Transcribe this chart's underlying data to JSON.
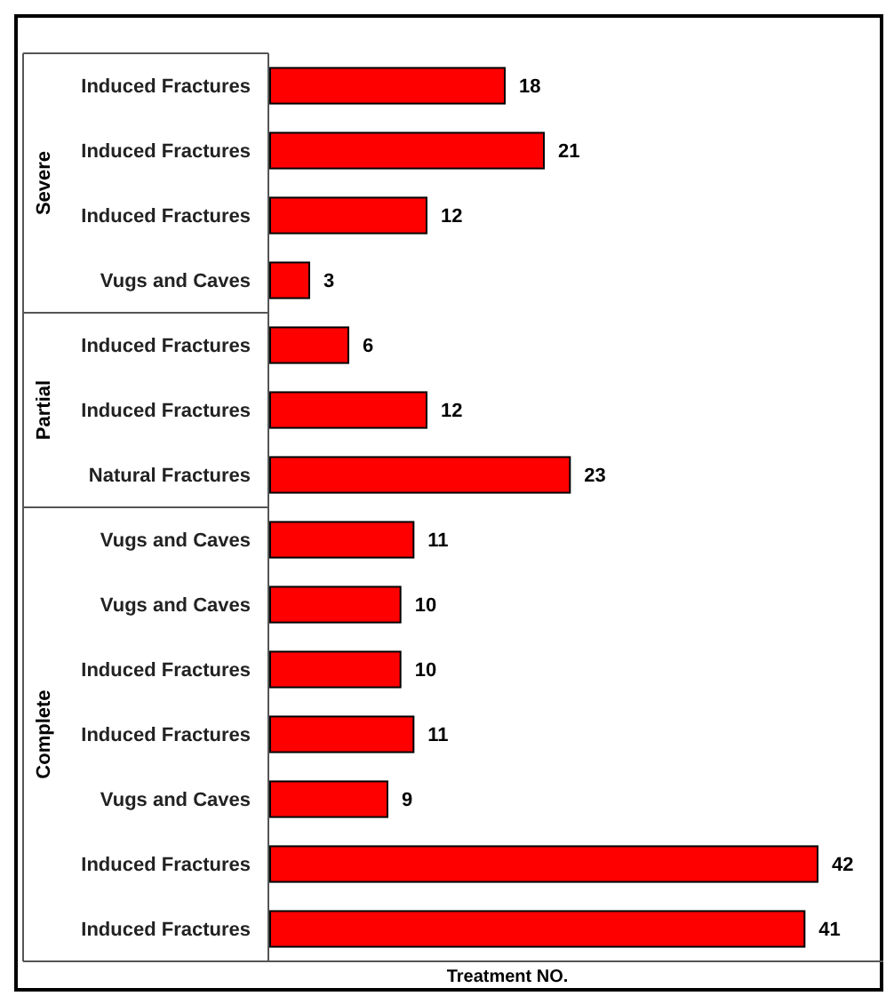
{
  "chart_data": {
    "type": "bar",
    "orientation": "horizontal",
    "xlabel": "Treatment NO.",
    "data_labels": true,
    "annotations": [
      "Severe",
      "Partial",
      "Complete"
    ],
    "categories": [
      "Induced Fractures",
      "Induced Fractures",
      "Induced Fractures",
      "Vugs and Caves",
      "Induced Fractures",
      "Induced Fractures",
      "Natural Fractures",
      "Vugs and Caves",
      "Vugs and Caves",
      "Induced Fractures",
      "Induced Fractures",
      "Vugs and Caves",
      "Induced Fractures",
      "Induced Fractures"
    ],
    "series": [
      {
        "color": "#ff0000",
        "values": [
          18,
          21,
          12,
          3,
          null,
          null,
          null,
          null,
          null,
          null,
          null,
          null,
          null,
          null
        ]
      },
      {
        "color": "#ff0000",
        "values": [
          null,
          null,
          null,
          null,
          6,
          12,
          23,
          null,
          null,
          null,
          null,
          null,
          null,
          null
        ]
      },
      {
        "color": "#ff0000",
        "values": [
          null,
          null,
          null,
          null,
          null,
          null,
          null,
          11,
          10,
          10,
          11,
          9,
          42,
          41
        ]
      }
    ]
  }
}
